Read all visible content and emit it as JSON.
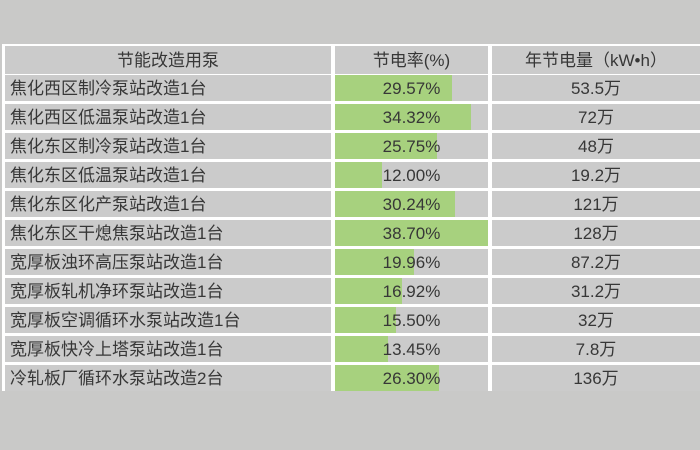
{
  "table": {
    "headers": {
      "pump": "节能改造用泵",
      "rate": "节电率(%)",
      "annual": "年节电量（kW•h）"
    },
    "bar_scale_max": 38.7,
    "rows": [
      {
        "name": "焦化西区制冷泵站改造1台",
        "rate": "29.57%",
        "rate_value": 29.57,
        "annual": "53.5万"
      },
      {
        "name": "焦化西区低温泵站改造1台",
        "rate": "34.32%",
        "rate_value": 34.32,
        "annual": "72万"
      },
      {
        "name": "焦化东区制冷泵站改造1台",
        "rate": "25.75%",
        "rate_value": 25.75,
        "annual": "48万"
      },
      {
        "name": "焦化东区低温泵站改造1台",
        "rate": "12.00%",
        "rate_value": 12.0,
        "annual": "19.2万"
      },
      {
        "name": "焦化东区化产泵站改造1台",
        "rate": "30.24%",
        "rate_value": 30.24,
        "annual": "121万"
      },
      {
        "name": "焦化东区干熄焦泵站改造1台",
        "rate": "38.70%",
        "rate_value": 38.7,
        "annual": "128万"
      },
      {
        "name": "宽厚板浊环高压泵站改造1台",
        "rate": "19.96%",
        "rate_value": 19.96,
        "annual": "87.2万"
      },
      {
        "name": "宽厚板轧机净环泵站改造1台",
        "rate": "16.92%",
        "rate_value": 16.92,
        "annual": "31.2万"
      },
      {
        "name": "宽厚板空调循环水泵站改造1台",
        "rate": "15.50%",
        "rate_value": 15.5,
        "annual": "32万"
      },
      {
        "name": "宽厚板快冷上塔泵站改造1台",
        "rate": "13.45%",
        "rate_value": 13.45,
        "annual": "7.8万"
      },
      {
        "name": "冷轧板厂循环水泵站改造2台",
        "rate": "26.30%",
        "rate_value": 26.3,
        "annual": "136万"
      }
    ]
  },
  "colors": {
    "page_background": "#c9c9c8",
    "cell_background": "#cbcbcb",
    "gridline": "#ffffff",
    "data_bar": "#a7d17e",
    "text": "#373737"
  },
  "chart_data": {
    "type": "table",
    "title": "",
    "columns": [
      "节能改造用泵",
      "节电率(%)",
      "年节电量（kW•h）"
    ],
    "categories": [
      "焦化西区制冷泵站改造1台",
      "焦化西区低温泵站改造1台",
      "焦化东区制冷泵站改造1台",
      "焦化东区低温泵站改造1台",
      "焦化东区化产泵站改造1台",
      "焦化东区干熄焦泵站改造1台",
      "宽厚板浊环高压泵站改造1台",
      "宽厚板轧机净环泵站改造1台",
      "宽厚板空调循环水泵站改造1台",
      "宽厚板快冷上塔泵站改造1台",
      "冷轧板厂循环水泵站改造2台"
    ],
    "series": [
      {
        "name": "节电率(%)",
        "values": [
          29.57,
          34.32,
          25.75,
          12.0,
          30.24,
          38.7,
          19.96,
          16.92,
          15.5,
          13.45,
          26.3
        ],
        "display": "in-cell data bars",
        "bar_max": 38.7
      },
      {
        "name": "年节电量(万 kW·h)",
        "values": [
          53.5,
          72,
          48,
          19.2,
          121,
          128,
          87.2,
          31.2,
          32,
          7.8,
          136
        ]
      }
    ],
    "legend": "none",
    "grid": "white gridlines on gray cells"
  }
}
